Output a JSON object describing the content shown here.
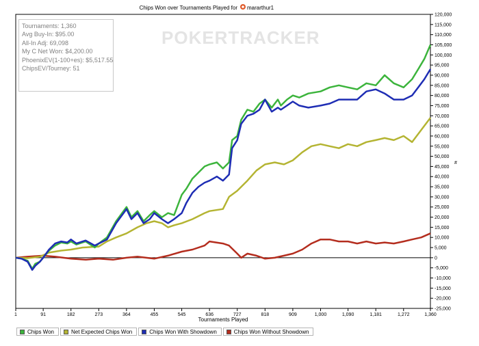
{
  "chart_data": {
    "type": "line",
    "title": "Chips Won over Tournaments Played for",
    "player": "mararthur1",
    "xlabel": "Tournaments Played",
    "ylabel": "",
    "xlim": [
      1,
      1360
    ],
    "ylim": [
      -25000,
      120000
    ],
    "x_ticks": [
      1,
      91,
      182,
      273,
      364,
      455,
      545,
      636,
      727,
      818,
      909,
      1000,
      1090,
      1181,
      1272,
      1360
    ],
    "x_tick_labels": [
      "1",
      "91",
      "182",
      "273",
      "364",
      "455",
      "545",
      "636",
      "727",
      "818",
      "909",
      "1,000",
      "1,090",
      "1,181",
      "1,272",
      "1,360"
    ],
    "y_ticks": [
      -25000,
      -20000,
      -15000,
      -10000,
      -5000,
      0,
      5000,
      10000,
      15000,
      20000,
      25000,
      30000,
      35000,
      40000,
      45000,
      50000,
      55000,
      60000,
      65000,
      70000,
      75000,
      80000,
      85000,
      90000,
      95000,
      100000,
      105000,
      110000,
      115000,
      120000
    ],
    "y_tick_labels": [
      "-25,000",
      "-20,000",
      "-15,000",
      "-10,000",
      "-5,000",
      "0",
      "5,000",
      "10,000",
      "15,000",
      "20,000",
      "25,000",
      "30,000",
      "35,000",
      "40,000",
      "45,000",
      "50,000",
      "55,000",
      "60,000",
      "65,000",
      "70,000",
      "75,000",
      "80,000",
      "85,000",
      "90,000",
      "95,000",
      "100,000",
      "105,000",
      "110,000",
      "115,000",
      "120,000"
    ],
    "grid": false,
    "legend_position": "bottom",
    "watermark": "POKERTRACKER",
    "stats": [
      "Tournaments: 1,360",
      "Avg Buy-In: $95.00",
      "All-In Adj: 69,098",
      "My C Net Won: $4,200.00",
      "PhoenixEV(1-100+es): $5,517.55",
      "ChipsEV/Tourney: 51"
    ],
    "series": [
      {
        "name": "Chips Won",
        "color": "#3cb43c",
        "x": [
          1,
          20,
          40,
          55,
          65,
          80,
          91,
          110,
          130,
          150,
          170,
          182,
          200,
          230,
          260,
          273,
          300,
          330,
          364,
          380,
          400,
          420,
          440,
          455,
          480,
          500,
          520,
          545,
          560,
          580,
          600,
          620,
          636,
          660,
          680,
          700,
          710,
          727,
          740,
          760,
          780,
          800,
          818,
          840,
          860,
          870,
          890,
          909,
          930,
          960,
          1000,
          1030,
          1060,
          1090,
          1120,
          1150,
          1181,
          1210,
          1240,
          1272,
          1300,
          1320,
          1340,
          1360
        ],
        "values": [
          0,
          -500,
          -1500,
          -5500,
          -3000,
          -2000,
          0,
          3500,
          6000,
          7500,
          7000,
          8000,
          6500,
          8000,
          5000,
          7000,
          10000,
          18000,
          25000,
          20000,
          23000,
          18000,
          21000,
          23000,
          20000,
          22000,
          21000,
          31000,
          34000,
          39000,
          42000,
          45000,
          46000,
          47000,
          44000,
          47000,
          58000,
          60000,
          68000,
          73000,
          72000,
          76000,
          78000,
          74000,
          78000,
          75000,
          78000,
          80000,
          79000,
          81000,
          82000,
          84000,
          85000,
          84000,
          83000,
          86000,
          85000,
          90000,
          86000,
          84000,
          88000,
          93000,
          98000,
          105000
        ]
      },
      {
        "name": "Net Expected Chips Won",
        "color": "#b4b432",
        "x": [
          1,
          40,
          80,
          110,
          150,
          182,
          220,
          273,
          300,
          330,
          364,
          400,
          430,
          455,
          480,
          500,
          520,
          545,
          580,
          620,
          636,
          680,
          700,
          727,
          760,
          790,
          818,
          850,
          880,
          909,
          940,
          970,
          1000,
          1030,
          1060,
          1090,
          1120,
          1150,
          1181,
          1210,
          1240,
          1272,
          1300,
          1330,
          1360
        ],
        "values": [
          0,
          -200,
          500,
          2500,
          3500,
          4000,
          5000,
          5500,
          8000,
          10000,
          12000,
          15000,
          17000,
          18000,
          17000,
          15000,
          16000,
          17000,
          19000,
          22000,
          23000,
          24000,
          30000,
          33000,
          38000,
          43000,
          46000,
          47000,
          46000,
          48000,
          52000,
          55000,
          56000,
          55000,
          54000,
          56000,
          55000,
          57000,
          58000,
          59000,
          58000,
          60000,
          57000,
          63000,
          69000
        ]
      },
      {
        "name": "Chips Won With Showdown",
        "color": "#1e2db4",
        "x": [
          1,
          20,
          40,
          55,
          65,
          80,
          91,
          110,
          130,
          150,
          170,
          182,
          200,
          230,
          260,
          273,
          300,
          330,
          364,
          380,
          400,
          420,
          440,
          455,
          480,
          500,
          520,
          545,
          560,
          580,
          600,
          620,
          636,
          660,
          680,
          700,
          710,
          727,
          740,
          760,
          780,
          800,
          818,
          840,
          860,
          870,
          890,
          909,
          930,
          960,
          1000,
          1030,
          1060,
          1090,
          1120,
          1150,
          1181,
          1210,
          1240,
          1272,
          1300,
          1320,
          1340,
          1360
        ],
        "values": [
          0,
          -500,
          -2000,
          -6000,
          -4000,
          -2000,
          0,
          4000,
          7000,
          8000,
          7500,
          9000,
          7000,
          8500,
          6000,
          7000,
          9000,
          17000,
          24000,
          19000,
          22000,
          17000,
          19000,
          22000,
          19000,
          17000,
          19000,
          22000,
          27000,
          32000,
          35000,
          37000,
          38000,
          40000,
          38000,
          41000,
          54000,
          58000,
          66000,
          70000,
          71000,
          73000,
          78000,
          72000,
          74000,
          73000,
          75000,
          77000,
          75000,
          74000,
          75000,
          76000,
          78000,
          78000,
          78000,
          82000,
          83000,
          81000,
          78000,
          78000,
          80000,
          84000,
          88000,
          93000
        ]
      },
      {
        "name": "Chips Won Without Showdown",
        "color": "#b42d1e",
        "x": [
          1,
          40,
          91,
          130,
          182,
          230,
          273,
          320,
          364,
          400,
          455,
          500,
          545,
          580,
          620,
          636,
          680,
          700,
          727,
          740,
          760,
          790,
          818,
          850,
          880,
          909,
          940,
          970,
          1000,
          1030,
          1060,
          1090,
          1120,
          1150,
          1181,
          1210,
          1240,
          1272,
          1300,
          1330,
          1360
        ],
        "values": [
          0,
          500,
          1000,
          500,
          -500,
          -1000,
          -500,
          -1000,
          0,
          500,
          -500,
          1000,
          3000,
          4000,
          6000,
          8000,
          7000,
          6000,
          2000,
          0,
          2000,
          1000,
          -500,
          0,
          1000,
          2000,
          4000,
          7000,
          9000,
          9000,
          8000,
          8000,
          7000,
          8000,
          7000,
          7500,
          7000,
          8000,
          9000,
          10000,
          12000
        ]
      }
    ]
  }
}
